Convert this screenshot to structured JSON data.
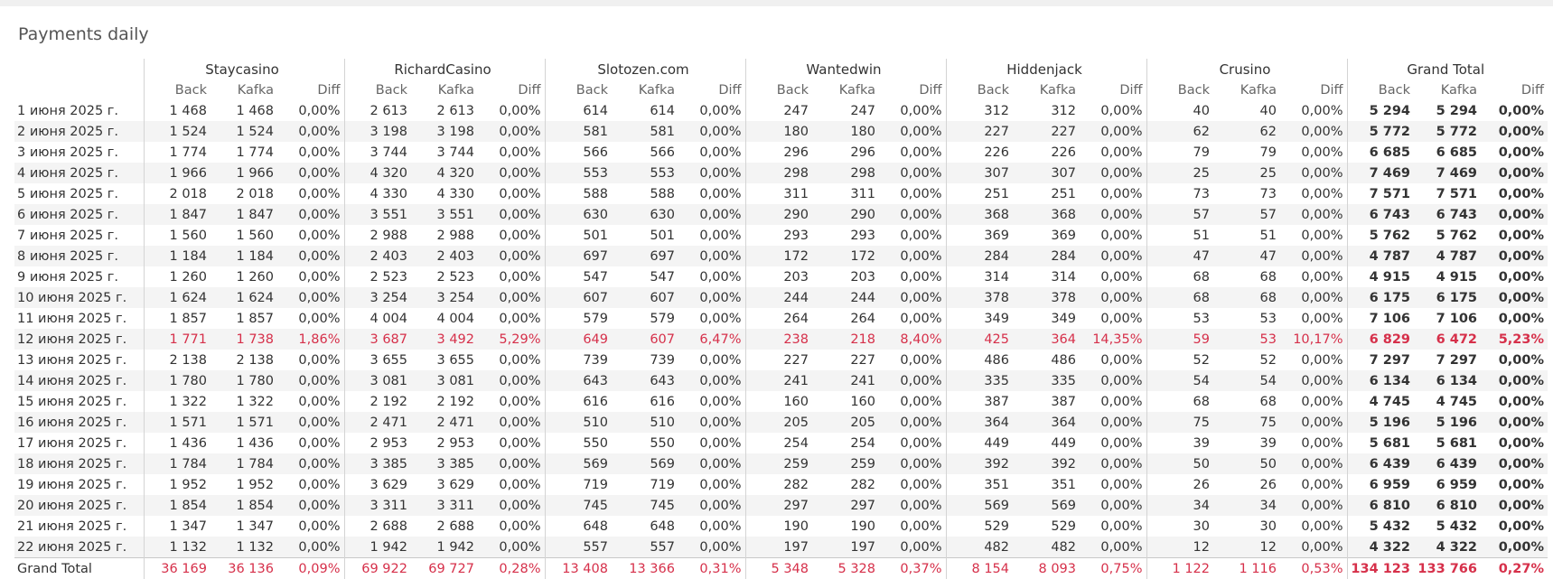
{
  "title": "Payments daily",
  "table": {
    "groups": [
      {
        "name": "Staycasino",
        "columns": [
          "Back",
          "Kafka",
          "Diff"
        ]
      },
      {
        "name": "RichardCasino",
        "columns": [
          "Back",
          "Kafka",
          "Diff"
        ]
      },
      {
        "name": "Slotozen.com",
        "columns": [
          "Back",
          "Kafka",
          "Diff"
        ]
      },
      {
        "name": "Wantedwin",
        "columns": [
          "Back",
          "Kafka",
          "Diff"
        ]
      },
      {
        "name": "Hiddenjack",
        "columns": [
          "Back",
          "Kafka",
          "Diff"
        ]
      },
      {
        "name": "Crusino",
        "columns": [
          "Back",
          "Kafka",
          "Diff"
        ]
      },
      {
        "name": "Grand Total",
        "columns": [
          "Back",
          "Kafka",
          "Diff"
        ]
      }
    ],
    "rows": [
      {
        "label": "1 июня 2025 г.",
        "color": "#333333",
        "cells": [
          "1 468",
          "1 468",
          "0,00%",
          "2 613",
          "2 613",
          "0,00%",
          "614",
          "614",
          "0,00%",
          "247",
          "247",
          "0,00%",
          "312",
          "312",
          "0,00%",
          "40",
          "40",
          "0,00%",
          "5 294",
          "5 294",
          "0,00%"
        ]
      },
      {
        "label": "2 июня 2025 г.",
        "color": "#333333",
        "cells": [
          "1 524",
          "1 524",
          "0,00%",
          "3 198",
          "3 198",
          "0,00%",
          "581",
          "581",
          "0,00%",
          "180",
          "180",
          "0,00%",
          "227",
          "227",
          "0,00%",
          "62",
          "62",
          "0,00%",
          "5 772",
          "5 772",
          "0,00%"
        ]
      },
      {
        "label": "3 июня 2025 г.",
        "color": "#333333",
        "cells": [
          "1 774",
          "1 774",
          "0,00%",
          "3 744",
          "3 744",
          "0,00%",
          "566",
          "566",
          "0,00%",
          "296",
          "296",
          "0,00%",
          "226",
          "226",
          "0,00%",
          "79",
          "79",
          "0,00%",
          "6 685",
          "6 685",
          "0,00%"
        ]
      },
      {
        "label": "4 июня 2025 г.",
        "color": "#333333",
        "cells": [
          "1 966",
          "1 966",
          "0,00%",
          "4 320",
          "4 320",
          "0,00%",
          "553",
          "553",
          "0,00%",
          "298",
          "298",
          "0,00%",
          "307",
          "307",
          "0,00%",
          "25",
          "25",
          "0,00%",
          "7 469",
          "7 469",
          "0,00%"
        ]
      },
      {
        "label": "5 июня 2025 г.",
        "color": "#333333",
        "cells": [
          "2 018",
          "2 018",
          "0,00%",
          "4 330",
          "4 330",
          "0,00%",
          "588",
          "588",
          "0,00%",
          "311",
          "311",
          "0,00%",
          "251",
          "251",
          "0,00%",
          "73",
          "73",
          "0,00%",
          "7 571",
          "7 571",
          "0,00%"
        ]
      },
      {
        "label": "6 июня 2025 г.",
        "color": "#333333",
        "cells": [
          "1 847",
          "1 847",
          "0,00%",
          "3 551",
          "3 551",
          "0,00%",
          "630",
          "630",
          "0,00%",
          "290",
          "290",
          "0,00%",
          "368",
          "368",
          "0,00%",
          "57",
          "57",
          "0,00%",
          "6 743",
          "6 743",
          "0,00%"
        ]
      },
      {
        "label": "7 июня 2025 г.",
        "color": "#333333",
        "cells": [
          "1 560",
          "1 560",
          "0,00%",
          "2 988",
          "2 988",
          "0,00%",
          "501",
          "501",
          "0,00%",
          "293",
          "293",
          "0,00%",
          "369",
          "369",
          "0,00%",
          "51",
          "51",
          "0,00%",
          "5 762",
          "5 762",
          "0,00%"
        ]
      },
      {
        "label": "8 июня 2025 г.",
        "color": "#333333",
        "cells": [
          "1 184",
          "1 184",
          "0,00%",
          "2 403",
          "2 403",
          "0,00%",
          "697",
          "697",
          "0,00%",
          "172",
          "172",
          "0,00%",
          "284",
          "284",
          "0,00%",
          "47",
          "47",
          "0,00%",
          "4 787",
          "4 787",
          "0,00%"
        ]
      },
      {
        "label": "9 июня 2025 г.",
        "color": "#333333",
        "cells": [
          "1 260",
          "1 260",
          "0,00%",
          "2 523",
          "2 523",
          "0,00%",
          "547",
          "547",
          "0,00%",
          "203",
          "203",
          "0,00%",
          "314",
          "314",
          "0,00%",
          "68",
          "68",
          "0,00%",
          "4 915",
          "4 915",
          "0,00%"
        ]
      },
      {
        "label": "10 июня 2025 г.",
        "color": "#333333",
        "cells": [
          "1 624",
          "1 624",
          "0,00%",
          "3 254",
          "3 254",
          "0,00%",
          "607",
          "607",
          "0,00%",
          "244",
          "244",
          "0,00%",
          "378",
          "378",
          "0,00%",
          "68",
          "68",
          "0,00%",
          "6 175",
          "6 175",
          "0,00%"
        ]
      },
      {
        "label": "11 июня 2025 г.",
        "color": "#333333",
        "cells": [
          "1 857",
          "1 857",
          "0,00%",
          "4 004",
          "4 004",
          "0,00%",
          "579",
          "579",
          "0,00%",
          "264",
          "264",
          "0,00%",
          "349",
          "349",
          "0,00%",
          "53",
          "53",
          "0,00%",
          "7 106",
          "7 106",
          "0,00%"
        ]
      },
      {
        "label": "12 июня 2025 г.",
        "color": "#d6304a",
        "cells": [
          "1 771",
          "1 738",
          "1,86%",
          "3 687",
          "3 492",
          "5,29%",
          "649",
          "607",
          "6,47%",
          "238",
          "218",
          "8,40%",
          "425",
          "364",
          "14,35%",
          "59",
          "53",
          "10,17%",
          "6 829",
          "6 472",
          "5,23%"
        ]
      },
      {
        "label": "13 июня 2025 г.",
        "color": "#333333",
        "cells": [
          "2 138",
          "2 138",
          "0,00%",
          "3 655",
          "3 655",
          "0,00%",
          "739",
          "739",
          "0,00%",
          "227",
          "227",
          "0,00%",
          "486",
          "486",
          "0,00%",
          "52",
          "52",
          "0,00%",
          "7 297",
          "7 297",
          "0,00%"
        ]
      },
      {
        "label": "14 июня 2025 г.",
        "color": "#333333",
        "cells": [
          "1 780",
          "1 780",
          "0,00%",
          "3 081",
          "3 081",
          "0,00%",
          "643",
          "643",
          "0,00%",
          "241",
          "241",
          "0,00%",
          "335",
          "335",
          "0,00%",
          "54",
          "54",
          "0,00%",
          "6 134",
          "6 134",
          "0,00%"
        ]
      },
      {
        "label": "15 июня 2025 г.",
        "color": "#333333",
        "cells": [
          "1 322",
          "1 322",
          "0,00%",
          "2 192",
          "2 192",
          "0,00%",
          "616",
          "616",
          "0,00%",
          "160",
          "160",
          "0,00%",
          "387",
          "387",
          "0,00%",
          "68",
          "68",
          "0,00%",
          "4 745",
          "4 745",
          "0,00%"
        ]
      },
      {
        "label": "16 июня 2025 г.",
        "color": "#333333",
        "cells": [
          "1 571",
          "1 571",
          "0,00%",
          "2 471",
          "2 471",
          "0,00%",
          "510",
          "510",
          "0,00%",
          "205",
          "205",
          "0,00%",
          "364",
          "364",
          "0,00%",
          "75",
          "75",
          "0,00%",
          "5 196",
          "5 196",
          "0,00%"
        ]
      },
      {
        "label": "17 июня 2025 г.",
        "color": "#333333",
        "cells": [
          "1 436",
          "1 436",
          "0,00%",
          "2 953",
          "2 953",
          "0,00%",
          "550",
          "550",
          "0,00%",
          "254",
          "254",
          "0,00%",
          "449",
          "449",
          "0,00%",
          "39",
          "39",
          "0,00%",
          "5 681",
          "5 681",
          "0,00%"
        ]
      },
      {
        "label": "18 июня 2025 г.",
        "color": "#333333",
        "cells": [
          "1 784",
          "1 784",
          "0,00%",
          "3 385",
          "3 385",
          "0,00%",
          "569",
          "569",
          "0,00%",
          "259",
          "259",
          "0,00%",
          "392",
          "392",
          "0,00%",
          "50",
          "50",
          "0,00%",
          "6 439",
          "6 439",
          "0,00%"
        ]
      },
      {
        "label": "19 июня 2025 г.",
        "color": "#333333",
        "cells": [
          "1 952",
          "1 952",
          "0,00%",
          "3 629",
          "3 629",
          "0,00%",
          "719",
          "719",
          "0,00%",
          "282",
          "282",
          "0,00%",
          "351",
          "351",
          "0,00%",
          "26",
          "26",
          "0,00%",
          "6 959",
          "6 959",
          "0,00%"
        ]
      },
      {
        "label": "20 июня 2025 г.",
        "color": "#333333",
        "cells": [
          "1 854",
          "1 854",
          "0,00%",
          "3 311",
          "3 311",
          "0,00%",
          "745",
          "745",
          "0,00%",
          "297",
          "297",
          "0,00%",
          "569",
          "569",
          "0,00%",
          "34",
          "34",
          "0,00%",
          "6 810",
          "6 810",
          "0,00%"
        ]
      },
      {
        "label": "21 июня 2025 г.",
        "color": "#333333",
        "cells": [
          "1 347",
          "1 347",
          "0,00%",
          "2 688",
          "2 688",
          "0,00%",
          "648",
          "648",
          "0,00%",
          "190",
          "190",
          "0,00%",
          "529",
          "529",
          "0,00%",
          "30",
          "30",
          "0,00%",
          "5 432",
          "5 432",
          "0,00%"
        ]
      },
      {
        "label": "22 июня 2025 г.",
        "color": "#333333",
        "cells": [
          "1 132",
          "1 132",
          "0,00%",
          "1 942",
          "1 942",
          "0,00%",
          "557",
          "557",
          "0,00%",
          "197",
          "197",
          "0,00%",
          "482",
          "482",
          "0,00%",
          "12",
          "12",
          "0,00%",
          "4 322",
          "4 322",
          "0,00%"
        ]
      }
    ],
    "total": {
      "label": "Grand Total",
      "color": "#d6304a",
      "cells": [
        "36 169",
        "36 136",
        "0,09%",
        "69 922",
        "69 727",
        "0,28%",
        "13 408",
        "13 366",
        "0,31%",
        "5 348",
        "5 328",
        "0,37%",
        "8 154",
        "8 093",
        "0,75%",
        "1 122",
        "1 116",
        "0,53%",
        "134 123",
        "133 766",
        "0,27%"
      ]
    }
  }
}
